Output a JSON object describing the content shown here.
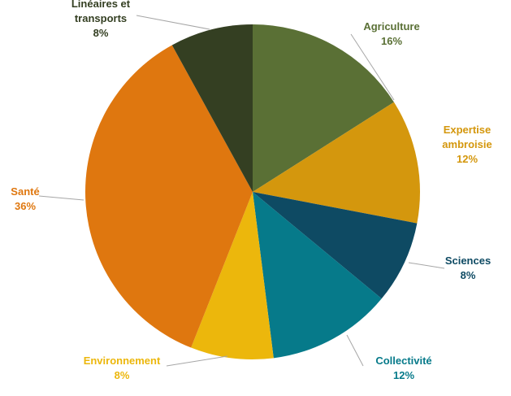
{
  "chart_data": {
    "type": "pie",
    "title": "",
    "slices": [
      {
        "label_lines": [
          "Agriculture"
        ],
        "value": 16,
        "value_label": "16%",
        "color": "#5a7035"
      },
      {
        "label_lines": [
          "Expertise",
          "ambroisie"
        ],
        "value": 12,
        "value_label": "12%",
        "color": "#d4970d"
      },
      {
        "label_lines": [
          "Sciences"
        ],
        "value": 8,
        "value_label": "8%",
        "color": "#0e4a63"
      },
      {
        "label_lines": [
          "Collectivité"
        ],
        "value": 12,
        "value_label": "12%",
        "color": "#067a8a"
      },
      {
        "label_lines": [
          "Environnement"
        ],
        "value": 8,
        "value_label": "8%",
        "color": "#ecb70c"
      },
      {
        "label_lines": [
          "Santé"
        ],
        "value": 36,
        "value_label": "36%",
        "color": "#df770f"
      },
      {
        "label_lines": [
          "Linéaires et",
          "transports"
        ],
        "value": 8,
        "value_label": "8%",
        "color": "#343f22"
      }
    ],
    "legend": "none",
    "start": "top-clockwise"
  }
}
